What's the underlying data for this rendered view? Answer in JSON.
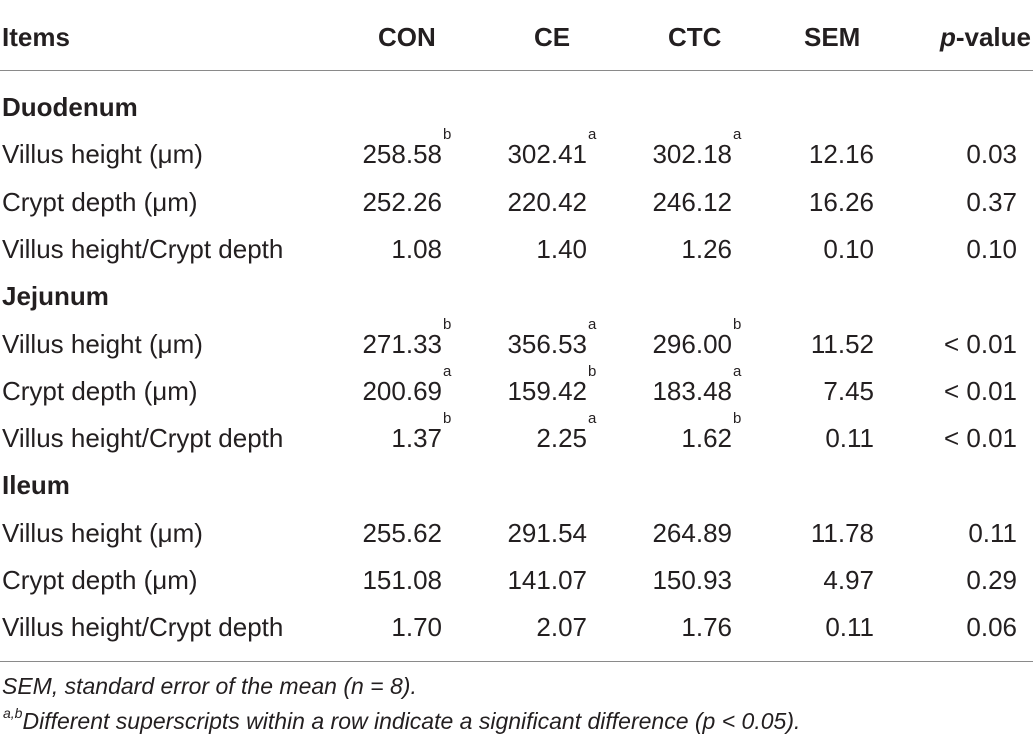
{
  "header": {
    "items": "Items",
    "con": "CON",
    "ce": "CE",
    "ctc": "CTC",
    "sem": "SEM",
    "p_italic": "p",
    "p_rest": "-value"
  },
  "sections": [
    {
      "name": "Duodenum",
      "rows": [
        {
          "label": "Villus height (μm)",
          "con": "258.58",
          "con_sup": "b",
          "ce": "302.41",
          "ce_sup": "a",
          "ctc": "302.18",
          "ctc_sup": "a",
          "sem": "12.16",
          "p": "0.03"
        },
        {
          "label": "Crypt depth (μm)",
          "con": "252.26",
          "con_sup": "",
          "ce": "220.42",
          "ce_sup": "",
          "ctc": "246.12",
          "ctc_sup": "",
          "sem": "16.26",
          "p": "0.37"
        },
        {
          "label": "Villus height/Crypt depth",
          "con": "1.08",
          "con_sup": "",
          "ce": "1.40",
          "ce_sup": "",
          "ctc": "1.26",
          "ctc_sup": "",
          "sem": "0.10",
          "p": "0.10"
        }
      ]
    },
    {
      "name": "Jejunum",
      "rows": [
        {
          "label": "Villus height (μm)",
          "con": "271.33",
          "con_sup": "b",
          "ce": "356.53",
          "ce_sup": "a",
          "ctc": "296.00",
          "ctc_sup": "b",
          "sem": "11.52",
          "p": "< 0.01"
        },
        {
          "label": "Crypt depth (μm)",
          "con": "200.69",
          "con_sup": "a",
          "ce": "159.42",
          "ce_sup": "b",
          "ctc": "183.48",
          "ctc_sup": "a",
          "sem": "7.45",
          "p": "< 0.01"
        },
        {
          "label": "Villus height/Crypt depth",
          "con": "1.37",
          "con_sup": "b",
          "ce": "2.25",
          "ce_sup": "a",
          "ctc": "1.62",
          "ctc_sup": "b",
          "sem": "0.11",
          "p": "< 0.01"
        }
      ]
    },
    {
      "name": "Ileum",
      "rows": [
        {
          "label": "Villus height (μm)",
          "con": "255.62",
          "con_sup": "",
          "ce": "291.54",
          "ce_sup": "",
          "ctc": "264.89",
          "ctc_sup": "",
          "sem": "11.78",
          "p": "0.11"
        },
        {
          "label": "Crypt depth (μm)",
          "con": "151.08",
          "con_sup": "",
          "ce": "141.07",
          "ce_sup": "",
          "ctc": "150.93",
          "ctc_sup": "",
          "sem": "4.97",
          "p": "0.29"
        },
        {
          "label": "Villus height/Crypt depth",
          "con": "1.70",
          "con_sup": "",
          "ce": "2.07",
          "ce_sup": "",
          "ctc": "1.76",
          "ctc_sup": "",
          "sem": "0.11",
          "p": "0.06"
        }
      ]
    }
  ],
  "footnotes": {
    "sem_note": "SEM, standard error of the mean (n = 8).",
    "sup_marker": "a,b",
    "sup_note": "Different superscripts within a row indicate a significant difference (p < 0.05)."
  }
}
